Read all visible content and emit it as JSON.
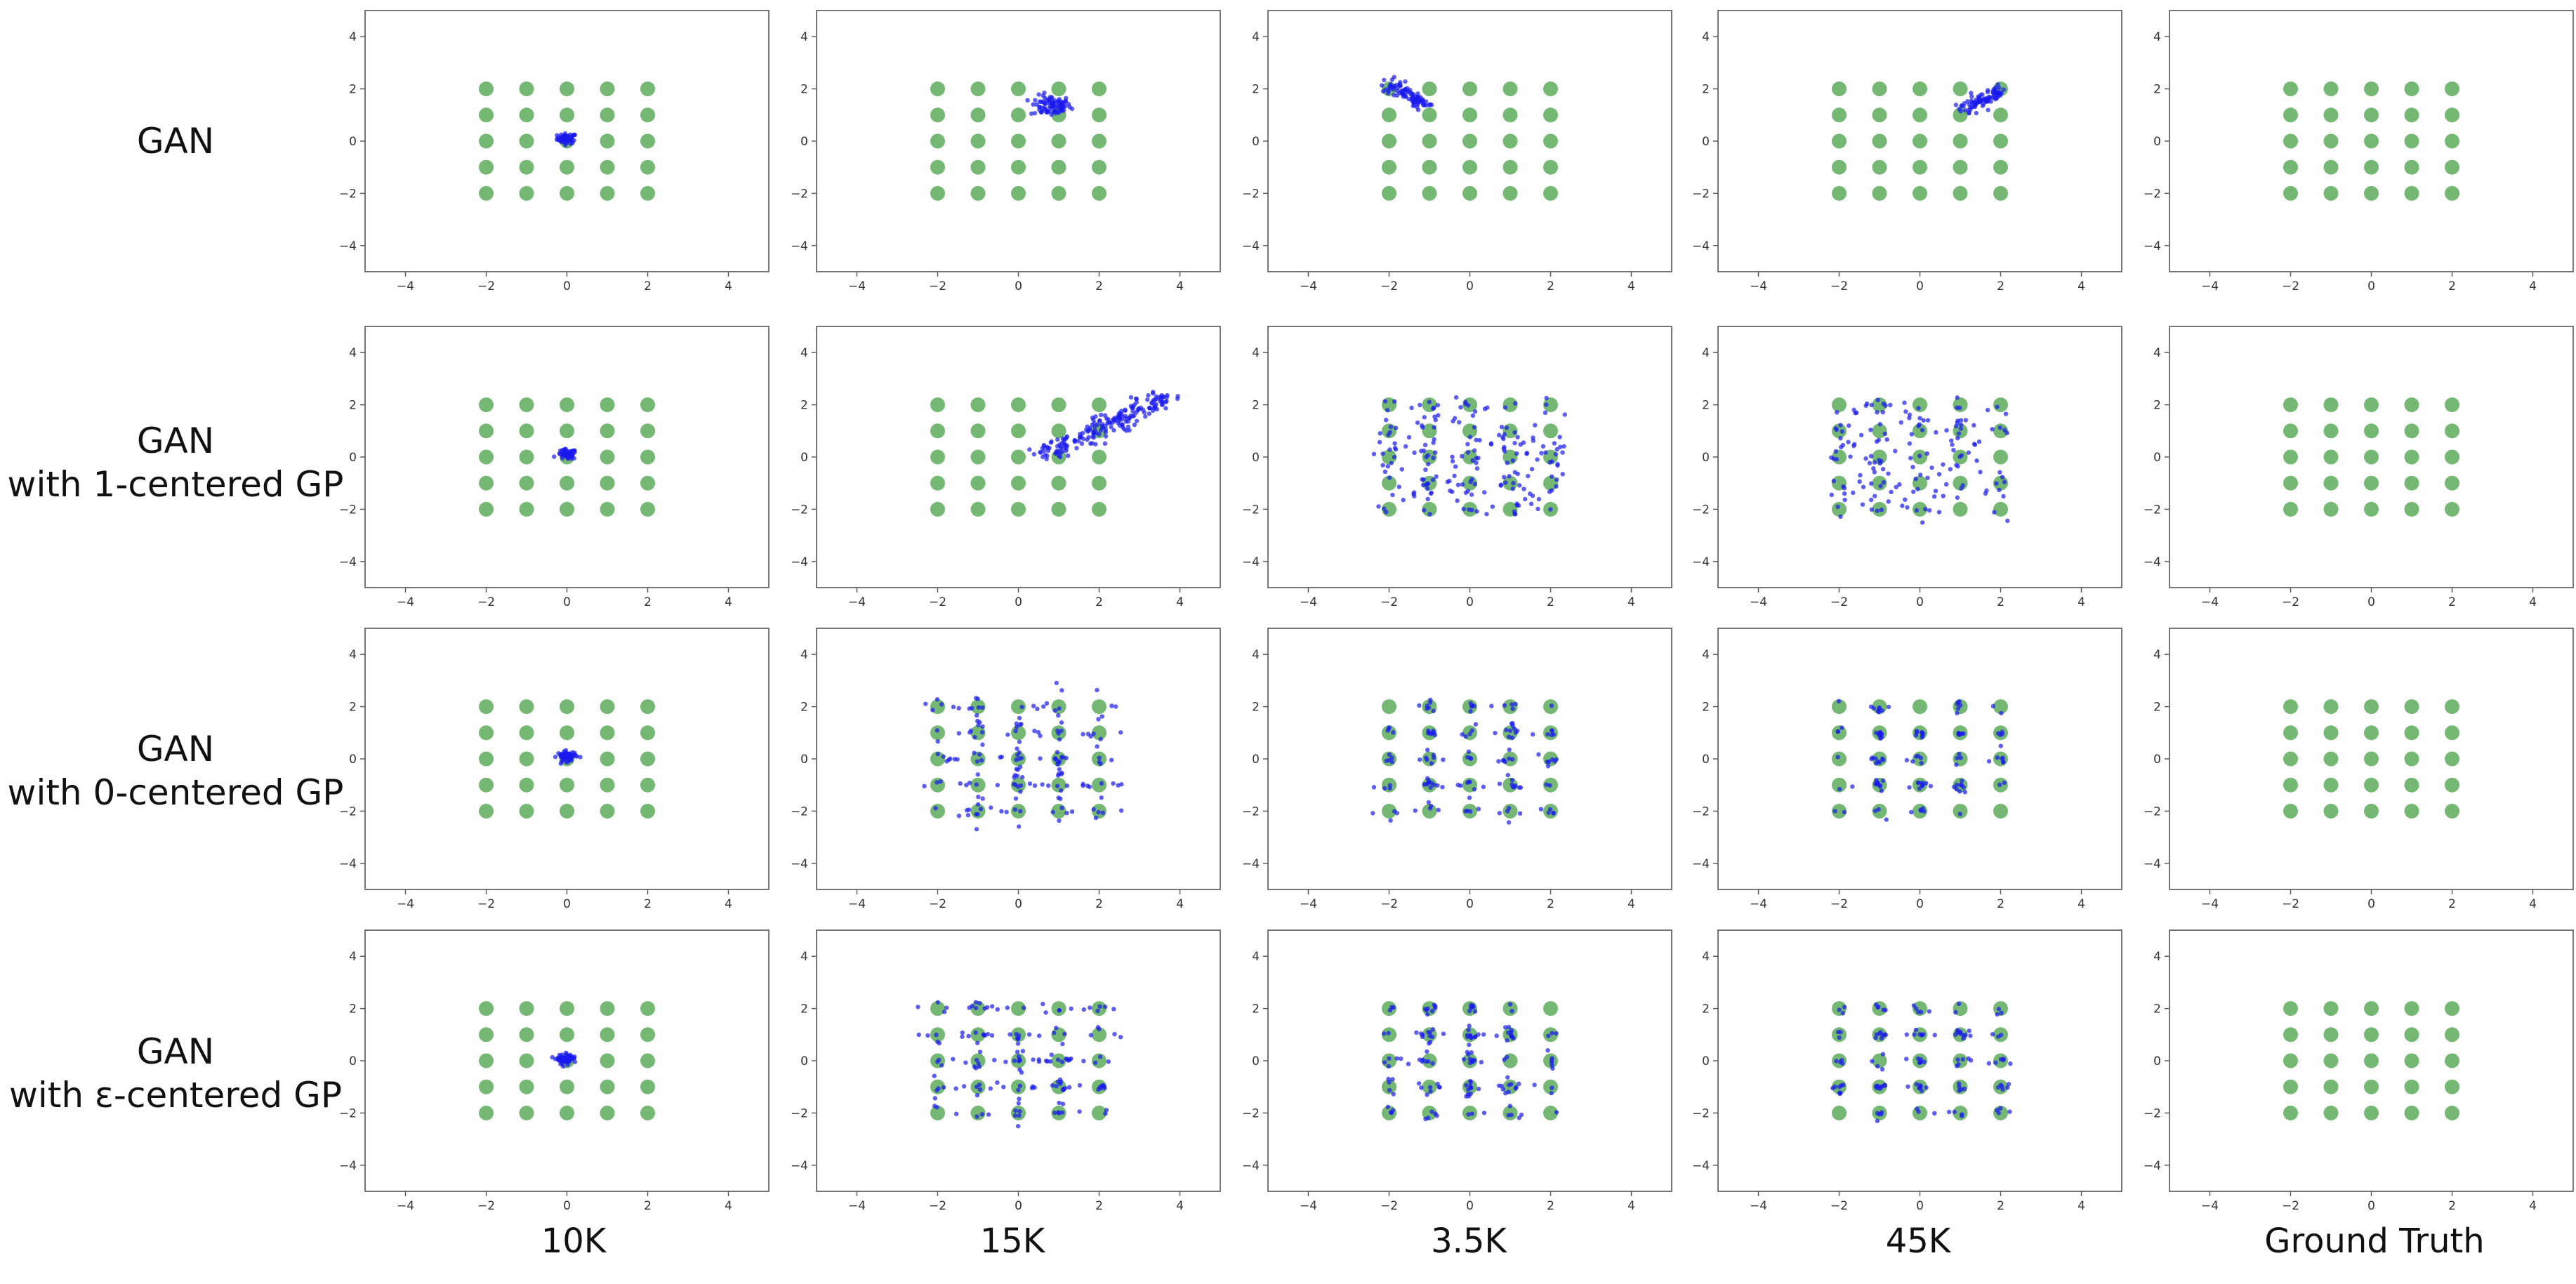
{
  "row_labels": [
    {
      "line1": "GAN",
      "line2": ""
    },
    {
      "line1": "GAN",
      "line2": "with 1-centered GP"
    },
    {
      "line1": "GAN",
      "line2": "with 0-centered GP"
    },
    {
      "line1": "GAN",
      "line2": "with ε-centered GP"
    }
  ],
  "col_labels": [
    "10K",
    "15K",
    "3.5K",
    "45K",
    "Ground Truth"
  ],
  "colors": {
    "real": "#74b874",
    "generated": "#1a1aee",
    "axes": "#555555",
    "background": "#ffffff"
  },
  "chart_data": {
    "type": "scatter",
    "grid": false,
    "xlim": [
      -5,
      5
    ],
    "ylim": [
      -5,
      5
    ],
    "xticks": [
      -4,
      -2,
      0,
      2,
      4
    ],
    "yticks": [
      -4,
      -2,
      0,
      2,
      4
    ],
    "real_series": {
      "x": [
        -2,
        -1,
        0,
        1,
        2
      ],
      "y": [
        -2,
        -1,
        0,
        1,
        2
      ]
    },
    "panels": [
      [
        {
          "pattern": "blob",
          "cx": 0.0,
          "cy": 0.1,
          "spread": 0.12,
          "n": 60
        },
        {
          "pattern": "blob",
          "cx": 0.8,
          "cy": 1.35,
          "spread": 0.25,
          "n": 90
        },
        {
          "pattern": "line",
          "from": [
            -2.0,
            2.2
          ],
          "to": [
            -1.1,
            1.4
          ],
          "width": 0.12,
          "n": 90
        },
        {
          "pattern": "line",
          "from": [
            1.1,
            1.25
          ],
          "to": [
            2.0,
            1.95
          ],
          "width": 0.12,
          "n": 90
        },
        {
          "pattern": "none"
        }
      ],
      [
        {
          "pattern": "blob",
          "cx": 0.0,
          "cy": 0.1,
          "spread": 0.12,
          "n": 60
        },
        {
          "pattern": "line",
          "from": [
            0.6,
            0.05
          ],
          "to": [
            3.6,
            2.3
          ],
          "width": 0.2,
          "n": 200
        },
        {
          "pattern": "spread",
          "xr": [
            -2.4,
            2.4
          ],
          "yr": [
            -2.2,
            2.3
          ],
          "n": 200
        },
        {
          "pattern": "spread",
          "xr": [
            -2.2,
            2.2
          ],
          "yr": [
            -2.2,
            2.2
          ],
          "n": 160
        },
        {
          "pattern": "none"
        }
      ],
      [
        {
          "pattern": "blob",
          "cx": 0.0,
          "cy": 0.1,
          "spread": 0.12,
          "n": 60
        },
        {
          "pattern": "grid_scatter",
          "noise": 0.4,
          "n": 170
        },
        {
          "pattern": "grid_scatter",
          "noise": 0.2,
          "n": 140
        },
        {
          "pattern": "grid_scatter",
          "noise": 0.15,
          "n": 120
        },
        {
          "pattern": "none"
        }
      ],
      [
        {
          "pattern": "blob",
          "cx": 0.0,
          "cy": 0.05,
          "spread": 0.12,
          "n": 60
        },
        {
          "pattern": "grid_scatter",
          "noise": 0.3,
          "n": 160
        },
        {
          "pattern": "grid_scatter",
          "noise": 0.2,
          "n": 150
        },
        {
          "pattern": "grid_scatter",
          "noise": 0.15,
          "n": 130
        },
        {
          "pattern": "none"
        }
      ]
    ]
  }
}
